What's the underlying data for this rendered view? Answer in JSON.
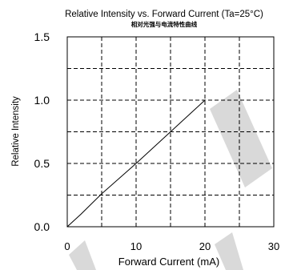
{
  "chart_data": {
    "type": "line",
    "title": "Relative Intensity vs. Forward Current (Ta=25°C)",
    "subtitle": "相对光强与电流特性曲线",
    "xlabel": "Forward Current (mA)",
    "ylabel": "Relative Intensity",
    "xlim": [
      0,
      30
    ],
    "ylim": [
      0,
      1.5
    ],
    "x_ticks": [
      0,
      10,
      20,
      30
    ],
    "y_ticks": [
      "0.0",
      "0.5",
      "1.0",
      "1.5"
    ],
    "grid": true,
    "grid_style": "dashed",
    "x_grid_step": 5,
    "y_grid_step": 0.25,
    "legend": "none",
    "series": [
      {
        "x": [
          0,
          2,
          5,
          10,
          15,
          20
        ],
        "y": [
          0,
          0.1,
          0.26,
          0.5,
          0.75,
          1.0
        ],
        "color": "#000000"
      }
    ]
  }
}
